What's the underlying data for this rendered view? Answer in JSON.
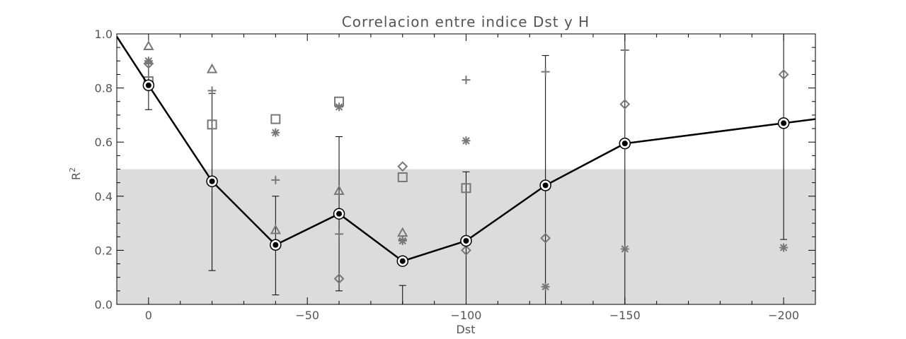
{
  "chart_data": {
    "type": "scatter",
    "title": "Correlacion entre indice Dst y H",
    "xlabel": "Dst",
    "ylabel": "R",
    "ylabel_superscript": "2",
    "xlim": [
      10,
      -210
    ],
    "ylim": [
      0.0,
      1.0
    ],
    "x_ticks": [
      0,
      -50,
      -100,
      -150,
      -200
    ],
    "x_tick_labels": [
      "0",
      "−50",
      "−100",
      "−150",
      "−200"
    ],
    "y_ticks": [
      0.0,
      0.2,
      0.4,
      0.6,
      0.8,
      1.0
    ],
    "y_tick_labels": [
      "0.0",
      "0.2",
      "0.4",
      "0.6",
      "0.8",
      "1.0"
    ],
    "shaded_band": {
      "y_from": 0.0,
      "y_to": 0.5,
      "color": "#dcdcdc"
    },
    "mean_series": {
      "marker": "filled-circle-in-ring",
      "color": "#000000",
      "x": [
        0,
        -20,
        -40,
        -60,
        -80,
        -100,
        -125,
        -150,
        -200
      ],
      "y": [
        0.81,
        0.455,
        0.22,
        0.335,
        0.16,
        0.235,
        0.44,
        0.595,
        0.67
      ],
      "error_low": [
        0.72,
        0.125,
        0.035,
        0.05,
        0.07,
        0.0,
        0.0,
        0.0,
        0.24
      ],
      "error_high": [
        0.9,
        0.78,
        0.4,
        0.62,
        0.0,
        0.49,
        0.92,
        1.0,
        1.0
      ],
      "line_x": [
        10,
        0,
        -20,
        -40,
        -60,
        -80,
        -100,
        -125,
        -150,
        -200,
        -210
      ],
      "line_y": [
        0.99,
        0.81,
        0.455,
        0.22,
        0.335,
        0.16,
        0.235,
        0.44,
        0.595,
        0.67,
        0.685
      ]
    },
    "series": [
      {
        "marker": "triangle",
        "color": "#777777",
        "points": [
          [
            0,
            0.955
          ],
          [
            -20,
            0.87
          ],
          [
            -40,
            0.275
          ],
          [
            -60,
            0.42
          ],
          [
            -80,
            0.265
          ]
        ]
      },
      {
        "marker": "square",
        "color": "#777777",
        "points": [
          [
            0,
            0.825
          ],
          [
            -20,
            0.665
          ],
          [
            -40,
            0.685
          ],
          [
            -60,
            0.75
          ],
          [
            -80,
            0.47
          ],
          [
            -100,
            0.43
          ]
        ]
      },
      {
        "marker": "plus",
        "color": "#777777",
        "points": [
          [
            0,
            0.89
          ],
          [
            -20,
            0.79
          ],
          [
            -40,
            0.46
          ],
          [
            -60,
            0.26
          ],
          [
            -80,
            0.24
          ],
          [
            -100,
            0.83
          ],
          [
            -125,
            0.86
          ],
          [
            -150,
            0.94
          ]
        ]
      },
      {
        "marker": "asterisk",
        "color": "#777777",
        "points": [
          [
            0,
            0.9
          ],
          [
            -40,
            0.635
          ],
          [
            -60,
            0.73
          ],
          [
            -80,
            0.235
          ],
          [
            -100,
            0.605
          ],
          [
            -125,
            0.065
          ],
          [
            -150,
            0.205
          ],
          [
            -200,
            0.21
          ]
        ]
      },
      {
        "marker": "diamond",
        "color": "#777777",
        "points": [
          [
            0,
            0.89
          ],
          [
            -60,
            0.095
          ],
          [
            -80,
            0.51
          ],
          [
            -100,
            0.2
          ],
          [
            -125,
            0.245
          ],
          [
            -150,
            0.74
          ],
          [
            -200,
            0.85
          ]
        ]
      }
    ]
  }
}
